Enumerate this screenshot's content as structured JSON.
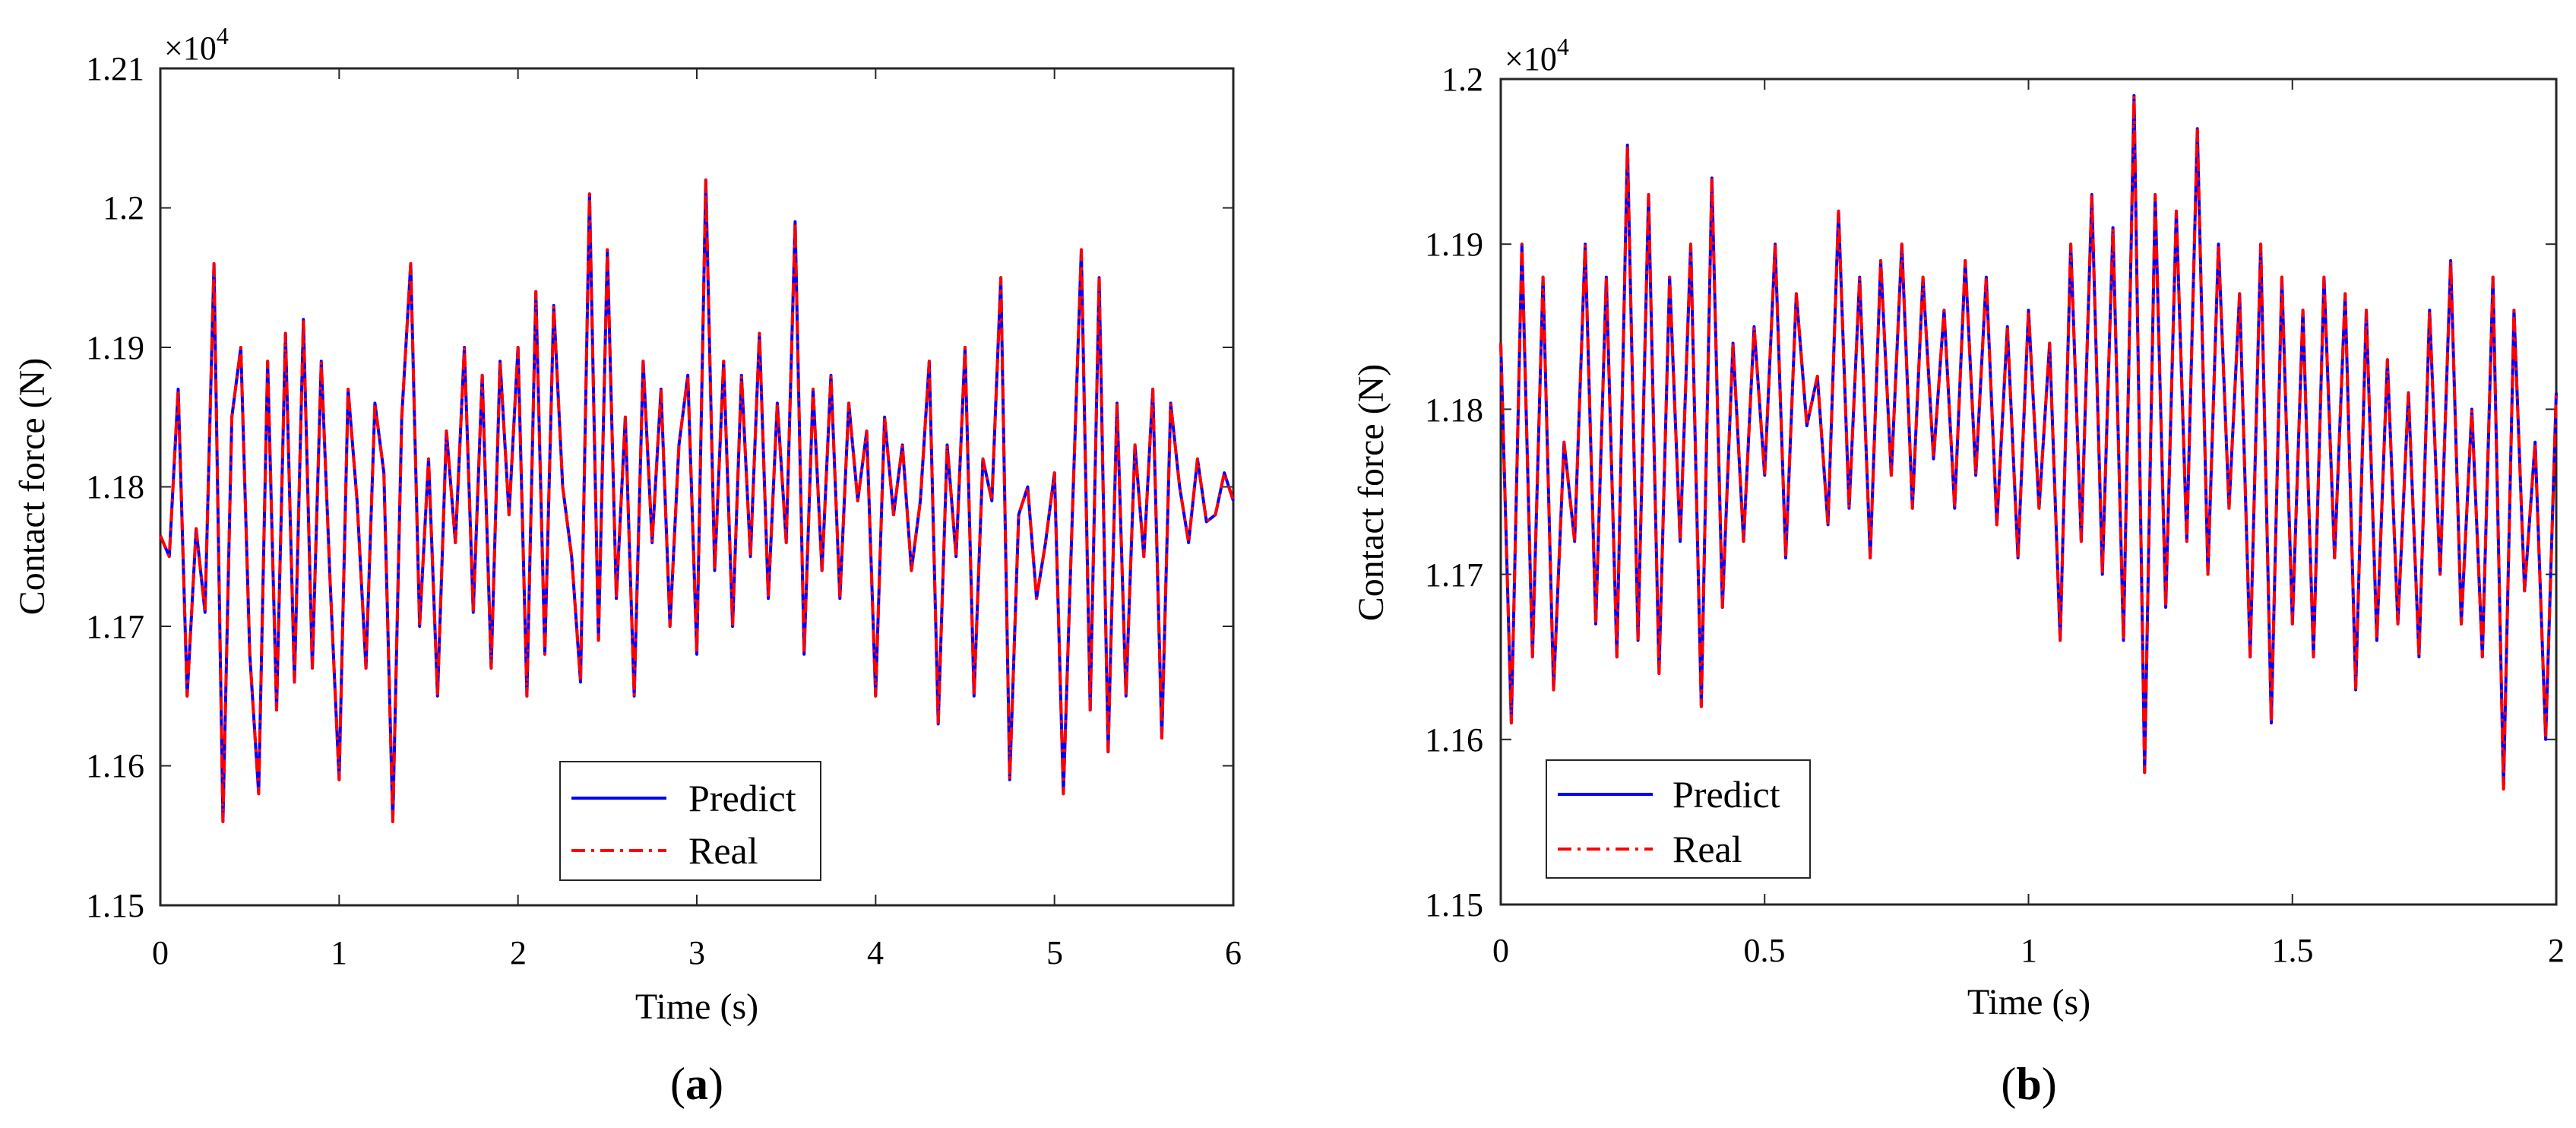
{
  "figure": {
    "panels": [
      {
        "sublabel_left": "(",
        "sublabel_letter": "a",
        "sublabel_right": ")"
      },
      {
        "sublabel_left": "(",
        "sublabel_letter": "b",
        "sublabel_right": ")"
      }
    ]
  },
  "chart_data": [
    {
      "type": "line",
      "panel": "a",
      "xlabel": "Time (s)",
      "ylabel": "Contact force (N)",
      "exponent_label_base": "×10",
      "exponent_label_power": "4",
      "xlim": [
        0,
        6
      ],
      "ylim": [
        1.15,
        1.21
      ],
      "xticks": [
        "0",
        "1",
        "2",
        "3",
        "4",
        "5",
        "6"
      ],
      "yticks": [
        "1.15",
        "1.16",
        "1.17",
        "1.18",
        "1.19",
        "1.2",
        "1.21"
      ],
      "legend": {
        "position": "bottom-center",
        "entries": [
          "Predict",
          "Real"
        ]
      },
      "series": [
        {
          "name": "Predict",
          "color": "#0000ff",
          "style": "solid"
        },
        {
          "name": "Real",
          "color": "#ff0000",
          "style": "dash-dot"
        }
      ],
      "x": [
        0,
        0.05,
        0.1,
        0.15,
        0.2,
        0.25,
        0.3,
        0.35,
        0.4,
        0.45,
        0.5,
        0.55,
        0.6,
        0.65,
        0.7,
        0.75,
        0.8,
        0.85,
        0.9,
        0.95,
        1,
        1.05,
        1.1,
        1.15,
        1.2,
        1.25,
        1.3,
        1.35,
        1.4,
        1.45,
        1.5,
        1.55,
        1.6,
        1.65,
        1.7,
        1.75,
        1.8,
        1.85,
        1.9,
        1.95,
        2,
        2.05,
        2.1,
        2.15,
        2.2,
        2.25,
        2.3,
        2.35,
        2.4,
        2.45,
        2.5,
        2.55,
        2.6,
        2.65,
        2.7,
        2.75,
        2.8,
        2.85,
        2.9,
        2.95,
        3,
        3.05,
        3.1,
        3.15,
        3.2,
        3.25,
        3.3,
        3.35,
        3.4,
        3.45,
        3.5,
        3.55,
        3.6,
        3.65,
        3.7,
        3.75,
        3.8,
        3.85,
        3.9,
        3.95,
        4,
        4.05,
        4.1,
        4.15,
        4.2,
        4.25,
        4.3,
        4.35,
        4.4,
        4.45,
        4.5,
        4.55,
        4.6,
        4.65,
        4.7,
        4.75,
        4.8,
        4.85,
        4.9,
        4.95,
        5,
        5.05,
        5.1,
        5.15,
        5.2,
        5.25,
        5.3,
        5.35,
        5.4,
        5.45,
        5.5,
        5.55,
        5.6,
        5.65,
        5.7,
        5.75,
        5.8,
        5.85,
        5.9,
        5.95,
        6
      ],
      "values": [
        1.1765,
        1.175,
        1.187,
        1.165,
        1.177,
        1.171,
        1.196,
        1.156,
        1.185,
        1.19,
        1.168,
        1.158,
        1.189,
        1.164,
        1.191,
        1.166,
        1.192,
        1.167,
        1.189,
        1.173,
        1.159,
        1.187,
        1.179,
        1.167,
        1.186,
        1.181,
        1.156,
        1.185,
        1.196,
        1.17,
        1.182,
        1.165,
        1.184,
        1.176,
        1.19,
        1.171,
        1.188,
        1.167,
        1.189,
        1.178,
        1.19,
        1.165,
        1.194,
        1.168,
        1.193,
        1.18,
        1.175,
        1.166,
        1.201,
        1.169,
        1.197,
        1.172,
        1.185,
        1.165,
        1.189,
        1.176,
        1.187,
        1.17,
        1.183,
        1.188,
        1.168,
        1.202,
        1.174,
        1.189,
        1.17,
        1.188,
        1.175,
        1.191,
        1.172,
        1.186,
        1.176,
        1.199,
        1.168,
        1.187,
        1.174,
        1.188,
        1.172,
        1.186,
        1.179,
        1.184,
        1.165,
        1.185,
        1.178,
        1.183,
        1.174,
        1.179,
        1.189,
        1.163,
        1.183,
        1.175,
        1.19,
        1.165,
        1.182,
        1.179,
        1.195,
        1.159,
        1.178,
        1.18,
        1.172,
        1.176,
        1.181,
        1.158,
        1.178,
        1.197,
        1.164,
        1.195,
        1.161,
        1.186,
        1.165,
        1.183,
        1.175,
        1.187,
        1.162,
        1.186,
        1.18,
        1.176,
        1.182,
        1.1775,
        1.178,
        1.181,
        1.179
      ]
    },
    {
      "type": "line",
      "panel": "b",
      "xlabel": "Time (s)",
      "ylabel": "Contact force (N)",
      "exponent_label_base": "×10",
      "exponent_label_power": "4",
      "xlim": [
        0,
        2
      ],
      "ylim": [
        1.15,
        1.2
      ],
      "xticks": [
        "0",
        "0.5",
        "1",
        "1.5",
        "2"
      ],
      "yticks": [
        "1.15",
        "1.16",
        "1.17",
        "1.18",
        "1.19",
        "1.2"
      ],
      "legend": {
        "position": "bottom-left",
        "entries": [
          "Predict",
          "Real"
        ]
      },
      "series": [
        {
          "name": "Predict",
          "color": "#0000ff",
          "style": "solid"
        },
        {
          "name": "Real",
          "color": "#ff0000",
          "style": "dash-dot"
        }
      ],
      "x": [
        0,
        0.02,
        0.04,
        0.06,
        0.08,
        0.1,
        0.12,
        0.14,
        0.16,
        0.18,
        0.2,
        0.22,
        0.24,
        0.26,
        0.28,
        0.3,
        0.32,
        0.34,
        0.36,
        0.38,
        0.4,
        0.42,
        0.44,
        0.46,
        0.48,
        0.5,
        0.52,
        0.54,
        0.56,
        0.58,
        0.6,
        0.62,
        0.64,
        0.66,
        0.68,
        0.7,
        0.72,
        0.74,
        0.76,
        0.78,
        0.8,
        0.82,
        0.84,
        0.86,
        0.88,
        0.9,
        0.92,
        0.94,
        0.96,
        0.98,
        1,
        1.02,
        1.04,
        1.06,
        1.08,
        1.1,
        1.12,
        1.14,
        1.16,
        1.18,
        1.2,
        1.22,
        1.24,
        1.26,
        1.28,
        1.3,
        1.32,
        1.34,
        1.36,
        1.38,
        1.4,
        1.42,
        1.44,
        1.46,
        1.48,
        1.5,
        1.52,
        1.54,
        1.56,
        1.58,
        1.6,
        1.62,
        1.64,
        1.66,
        1.68,
        1.7,
        1.72,
        1.74,
        1.76,
        1.78,
        1.8,
        1.82,
        1.84,
        1.86,
        1.88,
        1.9,
        1.92,
        1.94,
        1.96,
        1.98,
        2
      ],
      "values": [
        1.184,
        1.161,
        1.19,
        1.165,
        1.188,
        1.163,
        1.178,
        1.172,
        1.19,
        1.167,
        1.188,
        1.165,
        1.196,
        1.166,
        1.193,
        1.164,
        1.188,
        1.172,
        1.19,
        1.162,
        1.194,
        1.168,
        1.184,
        1.172,
        1.185,
        1.176,
        1.19,
        1.171,
        1.187,
        1.179,
        1.182,
        1.173,
        1.192,
        1.174,
        1.188,
        1.171,
        1.189,
        1.176,
        1.19,
        1.174,
        1.188,
        1.177,
        1.186,
        1.174,
        1.189,
        1.176,
        1.188,
        1.173,
        1.185,
        1.171,
        1.186,
        1.174,
        1.184,
        1.166,
        1.19,
        1.172,
        1.193,
        1.17,
        1.191,
        1.166,
        1.199,
        1.158,
        1.193,
        1.168,
        1.192,
        1.172,
        1.197,
        1.17,
        1.19,
        1.174,
        1.187,
        1.165,
        1.19,
        1.161,
        1.188,
        1.167,
        1.186,
        1.165,
        1.188,
        1.171,
        1.187,
        1.163,
        1.186,
        1.166,
        1.183,
        1.167,
        1.181,
        1.165,
        1.186,
        1.17,
        1.189,
        1.167,
        1.18,
        1.165,
        1.188,
        1.157,
        1.186,
        1.169,
        1.178,
        1.16,
        1.181
      ]
    }
  ]
}
